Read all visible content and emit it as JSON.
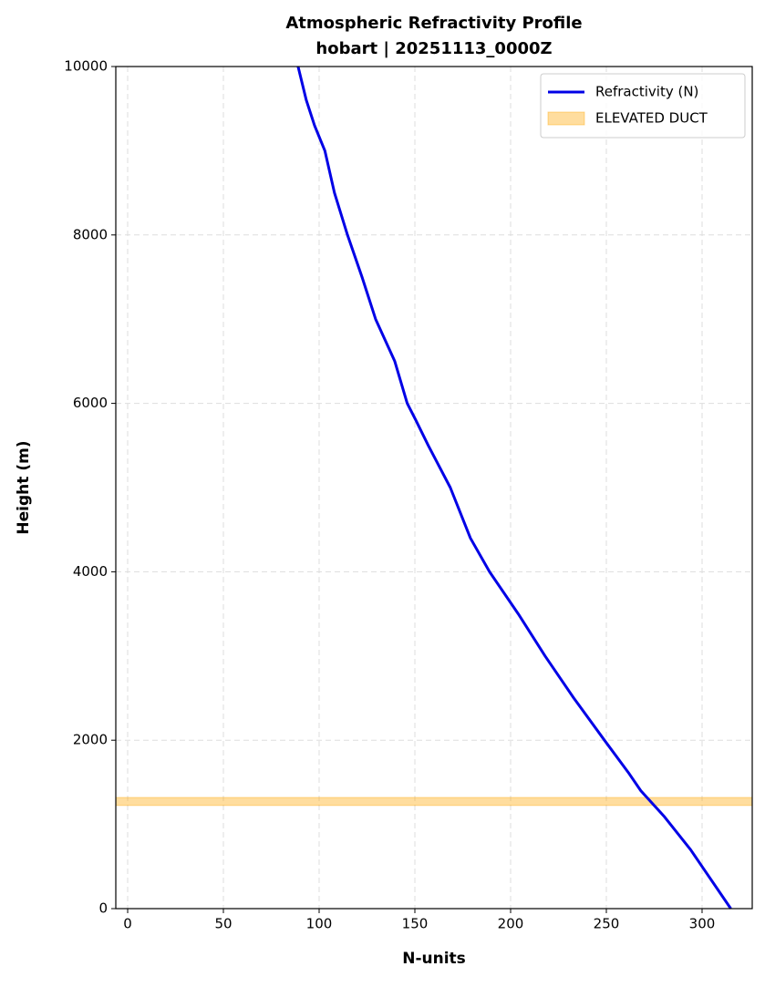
{
  "chart_data": {
    "type": "line",
    "title": "Atmospheric Refractivity Profile",
    "subtitle": "hobart | 20251113_0000Z",
    "x_label": "N-units",
    "y_label": "Height (m)",
    "y": [
      0,
      200,
      500,
      700,
      900,
      1100,
      1300,
      1400,
      1600,
      2000,
      2500,
      3000,
      3500,
      4000,
      4400,
      5000,
      5500,
      5800,
      6000,
      6500,
      7000,
      7500,
      8000,
      8500,
      9000,
      9300,
      9600,
      10000
    ],
    "series": [
      {
        "name": "Refractivity (N)",
        "color": "#0000e6",
        "values": [
          315,
          309,
          300,
          294,
          287,
          280,
          272,
          268,
          262,
          249,
          233,
          218,
          204,
          189,
          179,
          168.5,
          157,
          150.5,
          146,
          139.5,
          129.5,
          122.4,
          114.8,
          108,
          103,
          97.6,
          93.3,
          89
        ]
      }
    ],
    "bands": [
      {
        "name": "ELEVATED DUCT",
        "color": "#ffa500",
        "range": [
          1225,
          1320
        ]
      }
    ],
    "xlim": [
      -6.2,
      326.2
    ],
    "xticks": [
      0,
      50,
      100,
      150,
      200,
      250,
      300
    ],
    "ylim": [
      0,
      10000
    ],
    "yticks": [
      0,
      2000,
      4000,
      6000,
      8000,
      10000
    ],
    "grid": true,
    "legend": "upper right"
  }
}
